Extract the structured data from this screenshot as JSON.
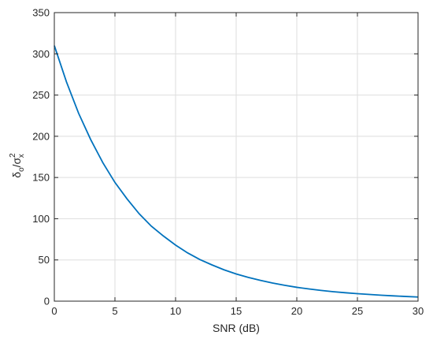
{
  "chart_data": {
    "type": "line",
    "title": "",
    "xlabel": "SNR (dB)",
    "ylabel": {
      "base": "δ",
      "sub": "o",
      "slash": "/",
      "base2": "σ",
      "sup2": "2",
      "sub2": "x"
    },
    "xlim": [
      0,
      30
    ],
    "ylim": [
      0,
      350
    ],
    "xticks": [
      0,
      5,
      10,
      15,
      20,
      25,
      30
    ],
    "yticks": [
      0,
      50,
      100,
      150,
      200,
      250,
      300,
      350
    ],
    "grid": true,
    "color": "#0072BD",
    "series": [
      {
        "x": [
          0,
          1,
          2,
          3,
          4,
          5,
          6,
          7,
          8,
          9,
          10,
          11,
          12,
          13,
          14,
          15,
          16,
          17,
          18,
          19,
          20,
          21,
          22,
          23,
          24,
          25,
          26,
          27,
          28,
          29,
          30
        ],
        "y": [
          310,
          266,
          228,
          196,
          168,
          144,
          124,
          106,
          91,
          79,
          68,
          58.5,
          50.5,
          44,
          38,
          33,
          28.8,
          25.2,
          22,
          19.2,
          16.8,
          14.8,
          13,
          11.5,
          10.2,
          9.1,
          8.1,
          7.2,
          6.4,
          5.7,
          5
        ]
      }
    ]
  }
}
